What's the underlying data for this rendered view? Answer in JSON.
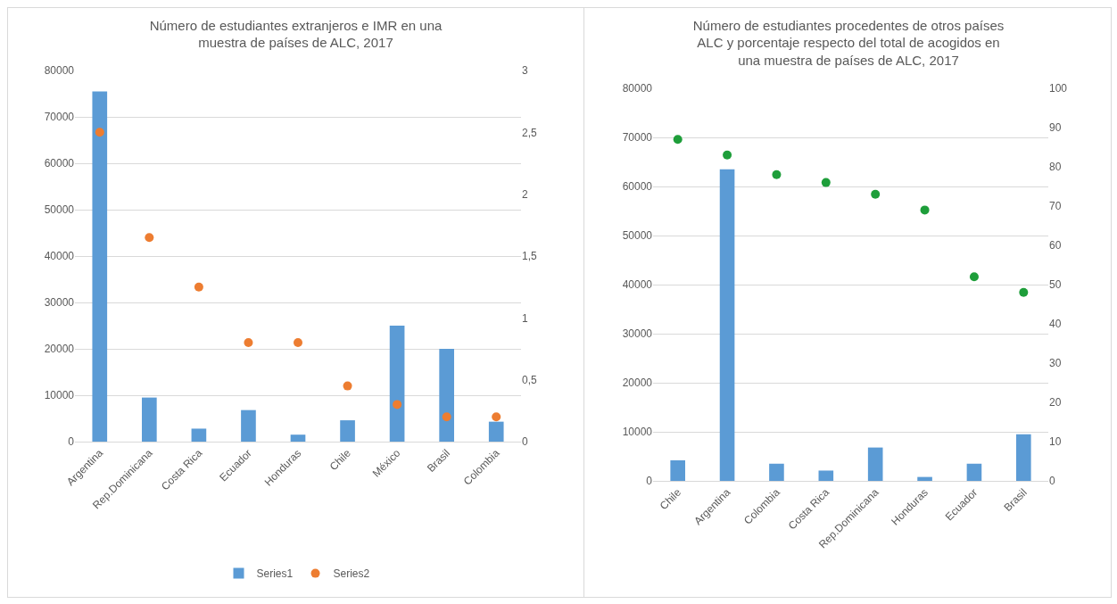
{
  "chart_data": [
    {
      "type": "bar",
      "title": "Número de estudiantes extranjeros e IMR en una muestra de países de ALC, 2017",
      "categories": [
        "Argentina",
        "Rep.Dominicana",
        "Costa Rica",
        "Ecuador",
        "Honduras",
        "Chile",
        "México",
        "Brasil",
        "Colombia"
      ],
      "series": [
        {
          "name": "Series1",
          "color": "#5b9bd5",
          "values": [
            75500,
            9500,
            2800,
            6800,
            1500,
            4600,
            25000,
            20000,
            4300
          ]
        },
        {
          "name": "Series2",
          "type": "scatter",
          "axis": "y2",
          "color": "#ed7d31",
          "values": [
            2.5,
            1.65,
            1.25,
            0.8,
            0.8,
            0.45,
            0.3,
            0.2,
            0.2
          ]
        }
      ],
      "ylim": [
        0,
        80000
      ],
      "yticks": [
        0,
        10000,
        20000,
        30000,
        40000,
        50000,
        60000,
        70000,
        80000
      ],
      "y2lim": [
        0,
        3
      ],
      "y2ticks": [
        0,
        {
          "value": 0.5,
          "label": "0,5"
        },
        1,
        {
          "value": 1.5,
          "label": "1,5"
        },
        2,
        {
          "value": 2.5,
          "label": "2,5"
        },
        3
      ],
      "grid": "y",
      "legend": "bottom",
      "marker": "circle"
    },
    {
      "type": "bar",
      "title": "Número de estudiantes procedentes de otros países ALC y porcentaje respecto del total de acogidos en una muestra de países de ALC, 2017",
      "categories": [
        "Chile",
        "Argentina",
        "Colombia",
        "Costa Rica",
        "Rep.Dominicana",
        "Honduras",
        "Ecuador",
        "Brasil"
      ],
      "series": [
        {
          "color": "#5b9bd5",
          "values": [
            4200,
            63500,
            3500,
            2100,
            6800,
            800,
            3500,
            9500
          ]
        },
        {
          "type": "scatter",
          "axis": "y2",
          "color": "#1e9e3a",
          "values": [
            87,
            83,
            78,
            76,
            73,
            69,
            52,
            48
          ]
        }
      ],
      "ylim": [
        0,
        80000
      ],
      "yticks": [
        0,
        10000,
        20000,
        30000,
        40000,
        50000,
        60000,
        70000,
        80000
      ],
      "y2lim": [
        0,
        100
      ],
      "y2ticks": [
        0,
        10,
        20,
        30,
        40,
        50,
        60,
        70,
        80,
        90,
        100
      ],
      "grid": "y",
      "legend": false,
      "marker": "circle"
    }
  ]
}
